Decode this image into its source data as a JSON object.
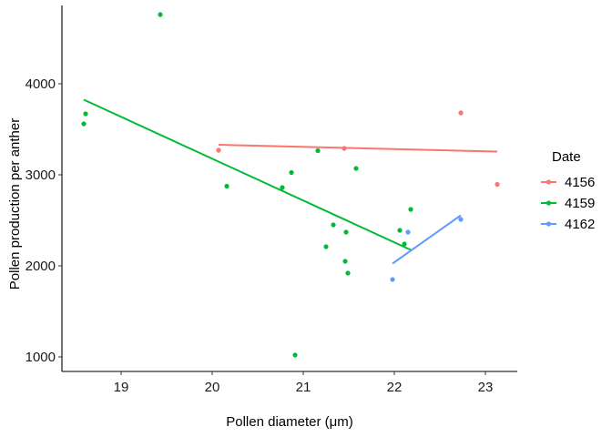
{
  "chart_data": {
    "type": "scatter",
    "xlabel": "Pollen diameter (μm)",
    "ylabel": "Pollen production per anther",
    "xlim": [
      18.35,
      23.35
    ],
    "ylim": [
      840,
      4860
    ],
    "x_ticks": [
      19,
      20,
      21,
      22,
      23
    ],
    "y_ticks": [
      1000,
      2000,
      3000,
      4000
    ],
    "grid": false,
    "legend": {
      "title": "Date",
      "placement": "right"
    },
    "series": [
      {
        "name": "4156",
        "color": "#F8766D",
        "points": [
          [
            20.07,
            3270
          ],
          [
            21.45,
            3290
          ],
          [
            22.73,
            3680
          ],
          [
            23.13,
            2895
          ]
        ],
        "fit": [
          [
            20.07,
            3330
          ],
          [
            23.13,
            3255
          ]
        ]
      },
      {
        "name": "4159",
        "color": "#00BA38",
        "points": [
          [
            18.59,
            3560
          ],
          [
            18.61,
            3670
          ],
          [
            19.43,
            4760
          ],
          [
            20.16,
            2875
          ],
          [
            20.77,
            2860
          ],
          [
            20.87,
            3025
          ],
          [
            20.91,
            1020
          ],
          [
            21.16,
            3265
          ],
          [
            21.25,
            2210
          ],
          [
            21.33,
            2450
          ],
          [
            21.46,
            2050
          ],
          [
            21.47,
            2370
          ],
          [
            21.49,
            1920
          ],
          [
            21.58,
            3070
          ],
          [
            22.06,
            2390
          ],
          [
            22.11,
            2240
          ],
          [
            22.18,
            2620
          ]
        ],
        "fit": [
          [
            18.59,
            3825
          ],
          [
            22.18,
            2175
          ]
        ]
      },
      {
        "name": "4162",
        "color": "#619CFF",
        "points": [
          [
            21.98,
            1850
          ],
          [
            22.15,
            2370
          ],
          [
            22.73,
            2510
          ]
        ],
        "fit": [
          [
            21.98,
            2025
          ],
          [
            22.73,
            2555
          ]
        ]
      }
    ]
  }
}
